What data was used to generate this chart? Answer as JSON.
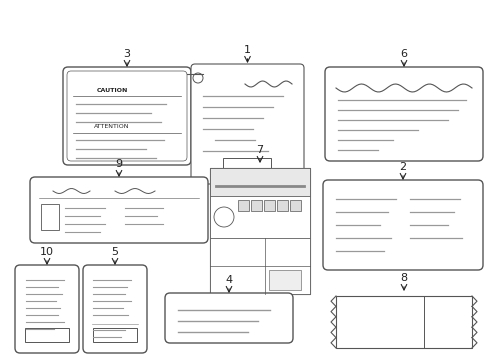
{
  "bg_color": "#ffffff",
  "line_color": "#555555",
  "gray_line": "#999999",
  "text_color": "#222222",
  "arrow_color": "#222222",
  "figsize": [
    4.89,
    3.6
  ],
  "dpi": 100
}
